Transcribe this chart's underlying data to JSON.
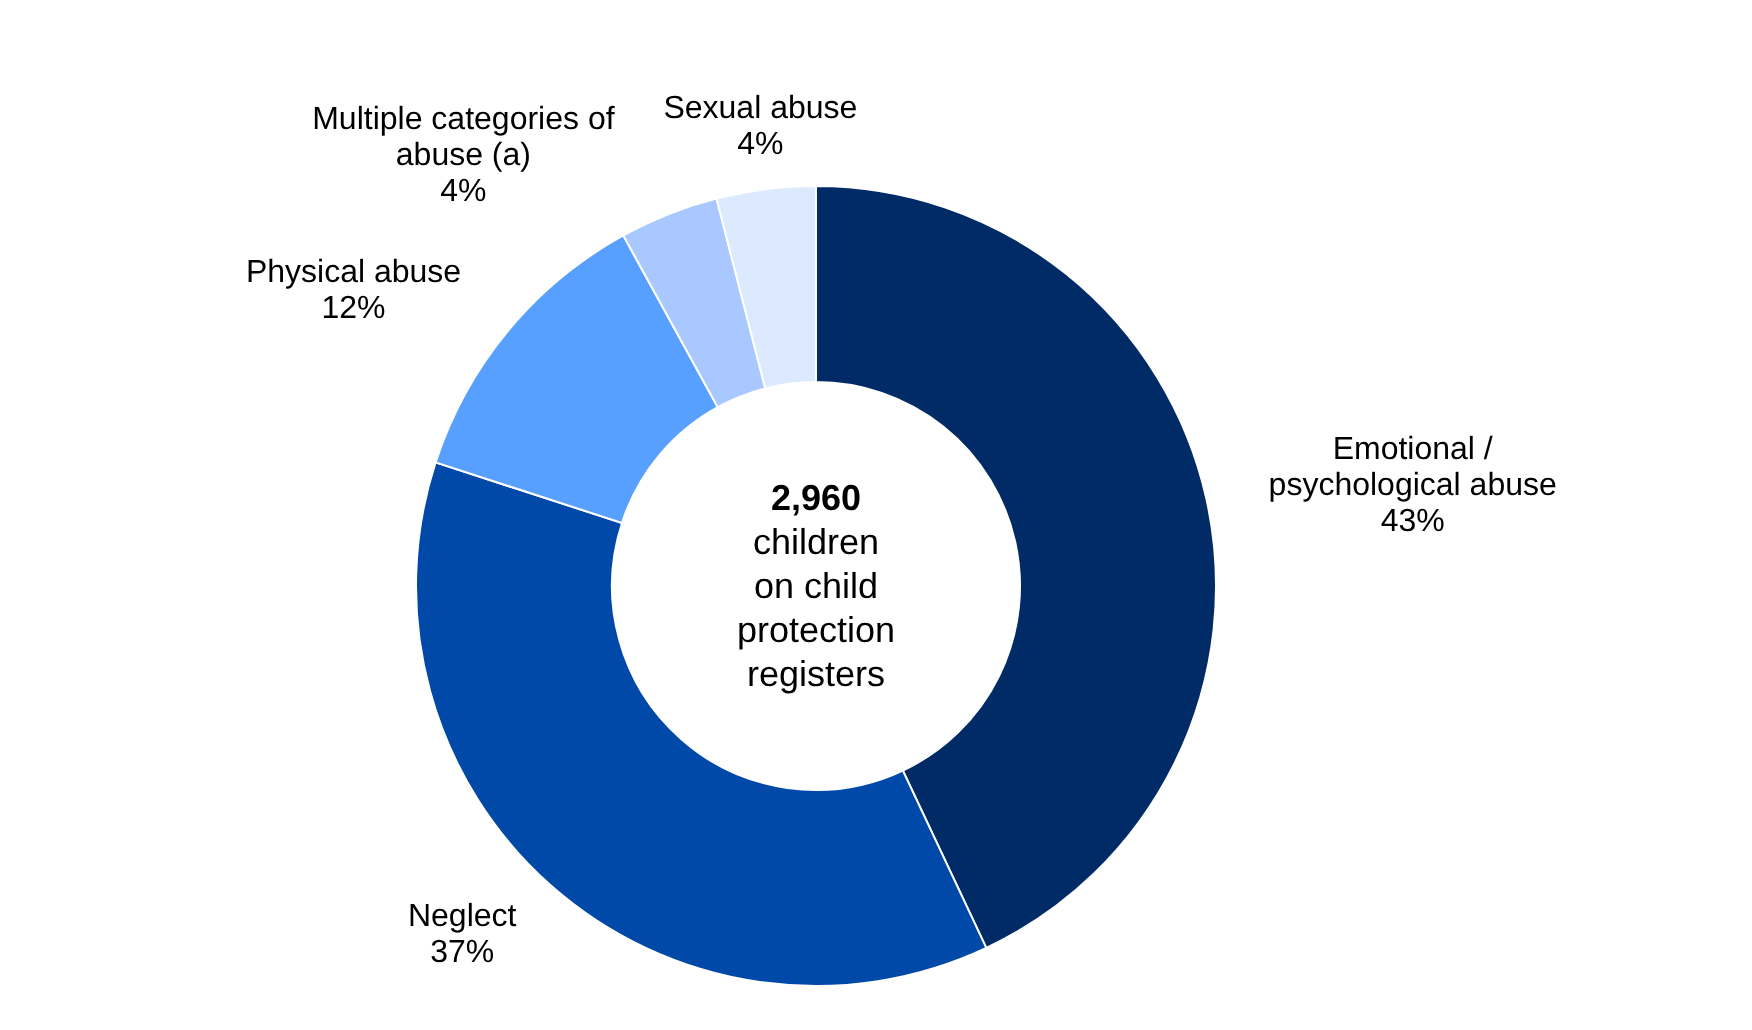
{
  "chart_data": {
    "type": "donut",
    "categories": [
      "Emotional / psychological abuse",
      "Neglect",
      "Physical abuse",
      "Multiple categories of abuse (a)",
      "Sexual abuse"
    ],
    "values": [
      43,
      37,
      12,
      4,
      4
    ],
    "colors": [
      "#002b66",
      "#0049a8",
      "#58a0ff",
      "#a8c8ff",
      "#dce9ff"
    ],
    "value_labels": [
      "43%",
      "37%",
      "12%",
      "4%",
      "4%"
    ],
    "annotations": [
      "2,960",
      "children on child protection registers"
    ]
  }
}
